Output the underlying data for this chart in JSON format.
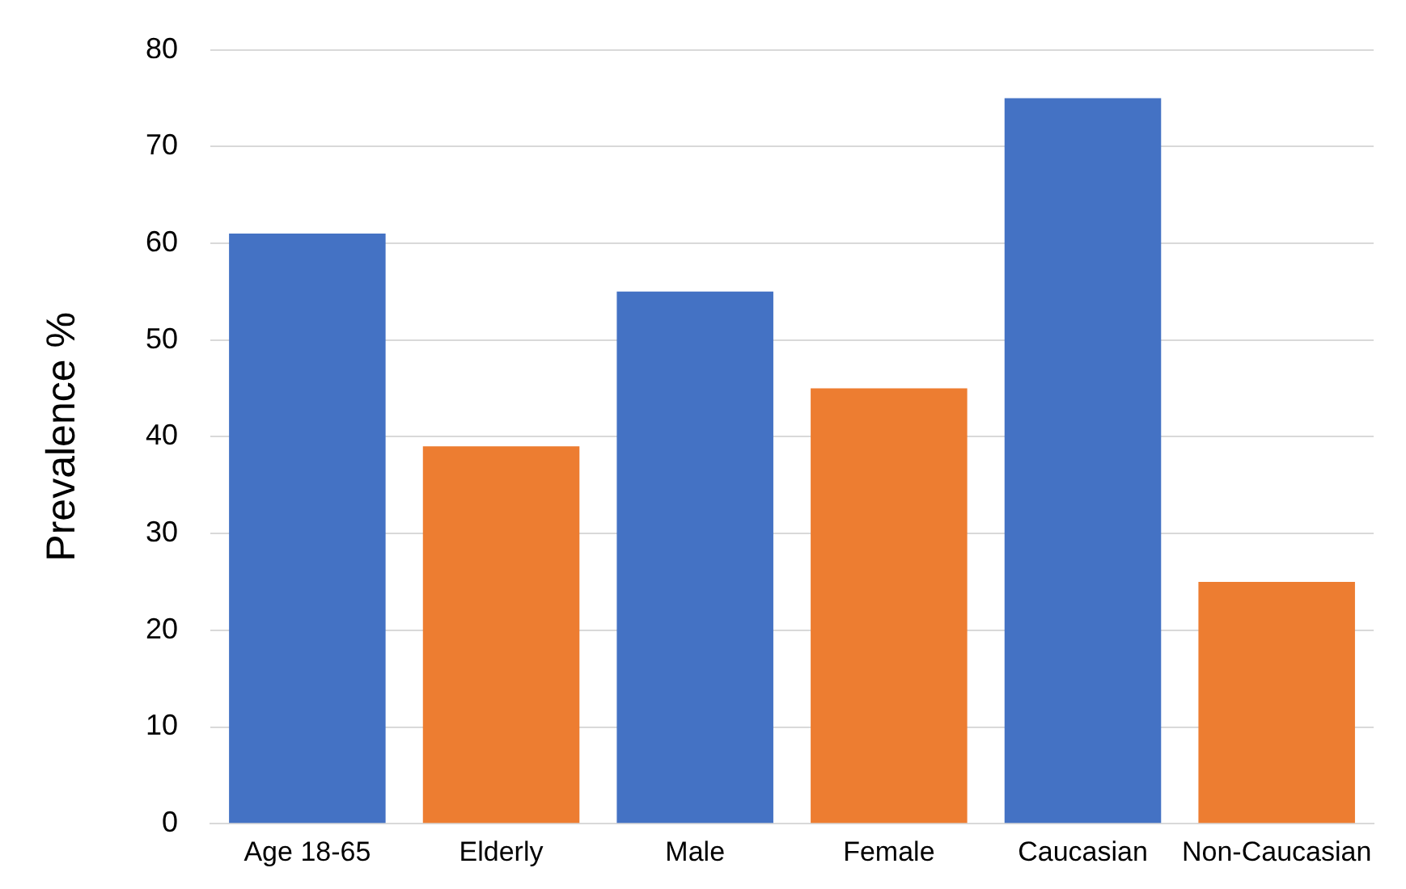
{
  "chart_data": {
    "type": "bar",
    "ylabel": "Prevalence %",
    "categories": [
      "Age 18-65",
      "Elderly",
      "Male",
      "Female",
      "Caucasian",
      "Non-Caucasian"
    ],
    "values": [
      61,
      39,
      55,
      45,
      75,
      25
    ],
    "colors": [
      "#4472c4",
      "#ed7d31",
      "#4472c4",
      "#ed7d31",
      "#4472c4",
      "#ed7d31"
    ],
    "ylim": [
      0,
      80
    ],
    "yticks": [
      0,
      10,
      20,
      30,
      40,
      50,
      60,
      70,
      80
    ],
    "grid": "y",
    "legend": false
  }
}
